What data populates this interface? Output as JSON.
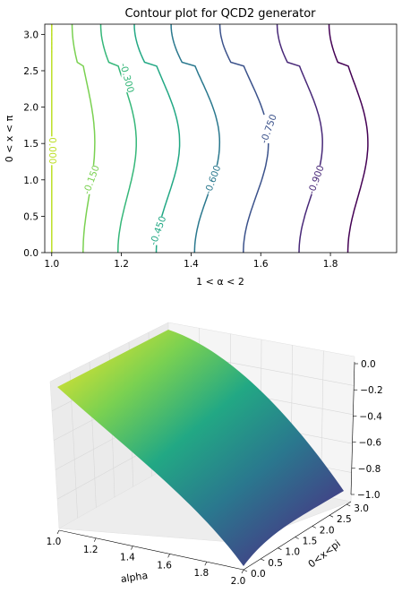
{
  "chart_data": [
    {
      "type": "contour",
      "title": "Contour plot for QCD2 generator",
      "xlabel": "1 < α < 2",
      "ylabel": "0 < x < π",
      "xlim": [
        0.98,
        1.99
      ],
      "ylim": [
        0,
        3.14
      ],
      "xticks": [
        "1.0",
        "1.2",
        "1.4",
        "1.6",
        "1.8"
      ],
      "yticks": [
        "0.0",
        "0.5",
        "1.0",
        "1.5",
        "2.0",
        "2.5",
        "3.0"
      ],
      "levels": [
        {
          "value": 0.0,
          "label": "0.000",
          "color": "#bddf26",
          "x_at_0": 1.0,
          "wiggle": 0.0
        },
        {
          "value": -0.15,
          "label": "-0.150",
          "color": "#7ad151",
          "x_at_0": 1.09,
          "wiggle": 0.035
        },
        {
          "value": -0.3,
          "label": "-0.300",
          "color": "#35b779",
          "x_at_0": 1.19,
          "wiggle": 0.055
        },
        {
          "value": -0.45,
          "label": "-0.450",
          "color": "#22a884",
          "x_at_0": 1.3,
          "wiggle": 0.07
        },
        {
          "value": -0.6,
          "label": "-0.600",
          "color": "#2a788e",
          "x_at_0": 1.41,
          "wiggle": 0.075
        },
        {
          "value": -0.75,
          "label": "-0.750",
          "color": "#3b528b",
          "x_at_0": 1.55,
          "wiggle": 0.075
        },
        {
          "value": -0.9,
          "label": "-0.900",
          "color": "#482878",
          "x_at_0": 1.71,
          "wiggle": 0.07
        },
        {
          "value": -1.05,
          "label": "",
          "color": "#440154",
          "x_at_0": 1.85,
          "wiggle": 0.06
        }
      ],
      "grid": false,
      "colormap": "viridis"
    },
    {
      "type": "surface3d",
      "xlabel": "alpha",
      "ylabel": "0<x<pi",
      "zlabel": "",
      "xlim": [
        1.0,
        2.0
      ],
      "ylim": [
        0.0,
        3.14
      ],
      "zlim": [
        -1.0,
        0.0
      ],
      "xticks": [
        "1.0",
        "1.2",
        "1.4",
        "1.6",
        "1.8",
        "2.0"
      ],
      "yticks": [
        "0.0",
        "0.5",
        "1.0",
        "1.5",
        "2.0",
        "2.5",
        "3.0"
      ],
      "zticks": [
        "0.0",
        "−0.2",
        "−0.4",
        "−0.6",
        "−0.8",
        "−1.0"
      ],
      "colormap": "viridis",
      "grid": true
    }
  ]
}
